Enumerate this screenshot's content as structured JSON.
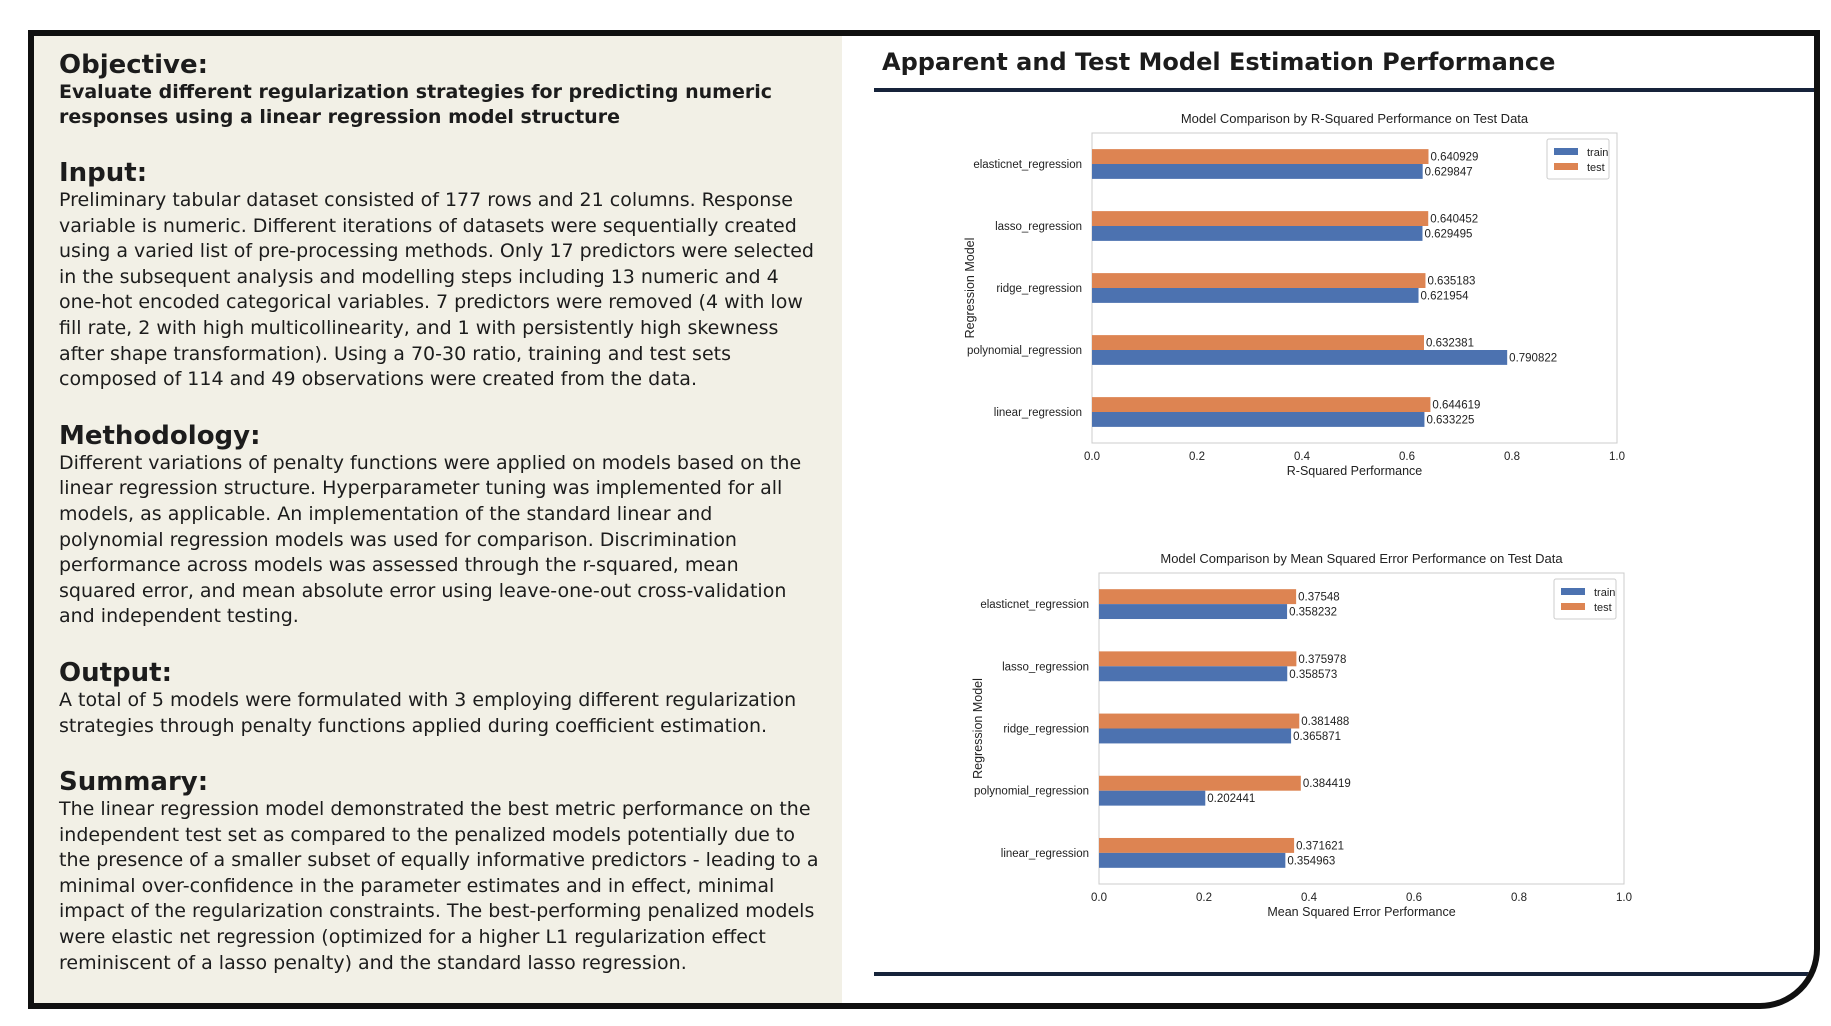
{
  "left": {
    "objective": {
      "title": "Objective:",
      "subtitle": "Evaluate different regularization strategies for predicting numeric responses using a linear regression model structure"
    },
    "input": {
      "title": "Input:",
      "body": "Preliminary tabular dataset consisted of 177 rows and 21 columns. Response variable is numeric. Different iterations of datasets were sequentially created using a varied list of pre-processing methods. Only 17 predictors were selected in the subsequent analysis and modelling steps including 13 numeric and 4 one-hot encoded categorical variables. 7 predictors were removed (4 with low fill rate, 2 with high multicollinearity, and 1 with persistently high skewness after shape transformation). Using a 70-30 ratio, training and test sets composed of 114 and 49 observations were created from the data."
    },
    "methodology": {
      "title": "Methodology:",
      "body": "Different variations of penalty functions were applied on models based on the linear regression structure. Hyperparameter tuning was implemented for all models, as applicable. An implementation of the standard linear and polynomial regression models was used for comparison. Discrimination performance across models was assessed through the r-squared, mean squared error, and mean absolute error using leave-one-out cross-validation and independent testing."
    },
    "output": {
      "title": "Output:",
      "body": "A total of 5 models were formulated with 3 employing different regularization strategies through penalty functions applied during coefficient estimation."
    },
    "summary": {
      "title": "Summary:",
      "body": "The linear regression model demonstrated the best metric performance on the independent test set as compared to the penalized models potentially due to the presence of a smaller subset of equally informative predictors - leading to a minimal over-confidence in the parameter estimates and in effect, minimal impact of the regularization constraints. The best-performing penalized models were elastic net regression (optimized for a higher L1 regularization effect reminiscent of a lasso penalty) and the standard lasso regression."
    }
  },
  "right": {
    "title": "Apparent and Test Model Estimation Performance"
  },
  "colors": {
    "train": "#4c72b0",
    "test": "#dd8452",
    "rule": "#16233a"
  },
  "chart_data": [
    {
      "type": "bar",
      "orientation": "horizontal",
      "title": "Model Comparison by R-Squared Performance on Test Data",
      "xlabel": "R-Squared Performance",
      "ylabel": "Regression Model",
      "xlim": [
        0.0,
        1.0
      ],
      "xticks": [
        "0.0",
        "0.2",
        "0.4",
        "0.6",
        "0.8",
        "1.0"
      ],
      "categories": [
        "elasticnet_regression",
        "lasso_regression",
        "ridge_regression",
        "polynomial_regression",
        "linear_regression"
      ],
      "series": [
        {
          "name": "train",
          "values": [
            0.629847,
            0.629495,
            0.621954,
            0.790822,
            0.633225
          ],
          "labels": [
            "0.629847",
            "0.629495",
            "0.621954",
            "0.790822",
            "0.633225"
          ]
        },
        {
          "name": "test",
          "values": [
            0.640929,
            0.640452,
            0.635183,
            0.632381,
            0.644619
          ],
          "labels": [
            "0.640929",
            "0.640452",
            "0.635183",
            "0.632381",
            "0.644619"
          ]
        }
      ],
      "legend": "top-right"
    },
    {
      "type": "bar",
      "orientation": "horizontal",
      "title": "Model Comparison by Mean Squared Error Performance on Test Data",
      "xlabel": "Mean Squared Error Performance",
      "ylabel": "Regression Model",
      "xlim": [
        0.0,
        1.0
      ],
      "xticks": [
        "0.0",
        "0.2",
        "0.4",
        "0.6",
        "0.8",
        "1.0"
      ],
      "categories": [
        "elasticnet_regression",
        "lasso_regression",
        "ridge_regression",
        "polynomial_regression",
        "linear_regression"
      ],
      "series": [
        {
          "name": "train",
          "values": [
            0.358232,
            0.358573,
            0.365871,
            0.202441,
            0.354963
          ],
          "labels": [
            "0.358232",
            "0.358573",
            "0.365871",
            "0.202441",
            "0.354963"
          ]
        },
        {
          "name": "test",
          "values": [
            0.37548,
            0.375978,
            0.381488,
            0.384419,
            0.371621
          ],
          "labels": [
            "0.37548",
            "0.375978",
            "0.381488",
            "0.384419",
            "0.371621"
          ]
        }
      ],
      "legend": "top-right"
    }
  ]
}
